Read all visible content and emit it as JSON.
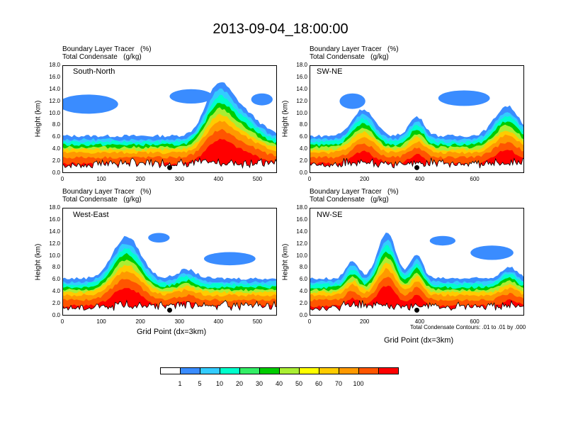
{
  "title": "2013-09-04_18:00:00",
  "panel_label_line1": "Boundary Layer Tracer   (%)",
  "panel_label_line2": "Total Condensate   (g/kg)",
  "ylabel": "Height (km)",
  "xlabel": "Grid Point (dx=3km)",
  "contour_note": "Total Condensate Contours: .01 to .01 by .000",
  "colorbar": {
    "colors": [
      "#ffffff",
      "#3a8cff",
      "#33ccff",
      "#00ffcc",
      "#33ee66",
      "#00cc00",
      "#aaee33",
      "#ffff00",
      "#ffcc00",
      "#ff9900",
      "#ff5500",
      "#ff0000"
    ],
    "labels": [
      "1",
      "5",
      "10",
      "20",
      "30",
      "40",
      "50",
      "60",
      "70",
      "100"
    ]
  },
  "chart_data": [
    {
      "type": "heatmap",
      "name": "South-North",
      "xlim": [
        0,
        550
      ],
      "ylim": [
        0,
        18
      ],
      "xticks": [
        "0",
        "100",
        "200",
        "300",
        "400",
        "500"
      ],
      "xtick_vals": [
        0,
        100,
        200,
        300,
        400,
        500
      ],
      "yticks": [
        "0.0",
        "2.0",
        "4.0",
        "6.0",
        "8.0",
        "10.0",
        "12.0",
        "14.0",
        "16.0",
        "18.0"
      ],
      "marker_x": 275
    },
    {
      "type": "heatmap",
      "name": "SW-NE",
      "xlim": [
        0,
        780
      ],
      "ylim": [
        0,
        18
      ],
      "xticks": [
        "0",
        "200",
        "400",
        "600"
      ],
      "xtick_vals": [
        0,
        200,
        400,
        600
      ],
      "yticks": [
        "0.0",
        "2.0",
        "4.0",
        "6.0",
        "8.0",
        "10.0",
        "12.0",
        "14.0",
        "16.0",
        "18.0"
      ],
      "marker_x": 390
    },
    {
      "type": "heatmap",
      "name": "West-East",
      "xlim": [
        0,
        550
      ],
      "ylim": [
        0,
        18
      ],
      "xticks": [
        "0",
        "100",
        "200",
        "300",
        "400",
        "500"
      ],
      "xtick_vals": [
        0,
        100,
        200,
        300,
        400,
        500
      ],
      "yticks": [
        "0.0",
        "2.0",
        "4.0",
        "6.0",
        "8.0",
        "10.0",
        "12.0",
        "14.0",
        "16.0",
        "18.0"
      ],
      "marker_x": 275
    },
    {
      "type": "heatmap",
      "name": "NW-SE",
      "xlim": [
        0,
        780
      ],
      "ylim": [
        0,
        18
      ],
      "xticks": [
        "0",
        "200",
        "400",
        "600"
      ],
      "xtick_vals": [
        0,
        200,
        400,
        600
      ],
      "yticks": [
        "0.0",
        "2.0",
        "4.0",
        "6.0",
        "8.0",
        "10.0",
        "12.0",
        "14.0",
        "16.0",
        "18.0"
      ],
      "marker_x": 390
    }
  ]
}
